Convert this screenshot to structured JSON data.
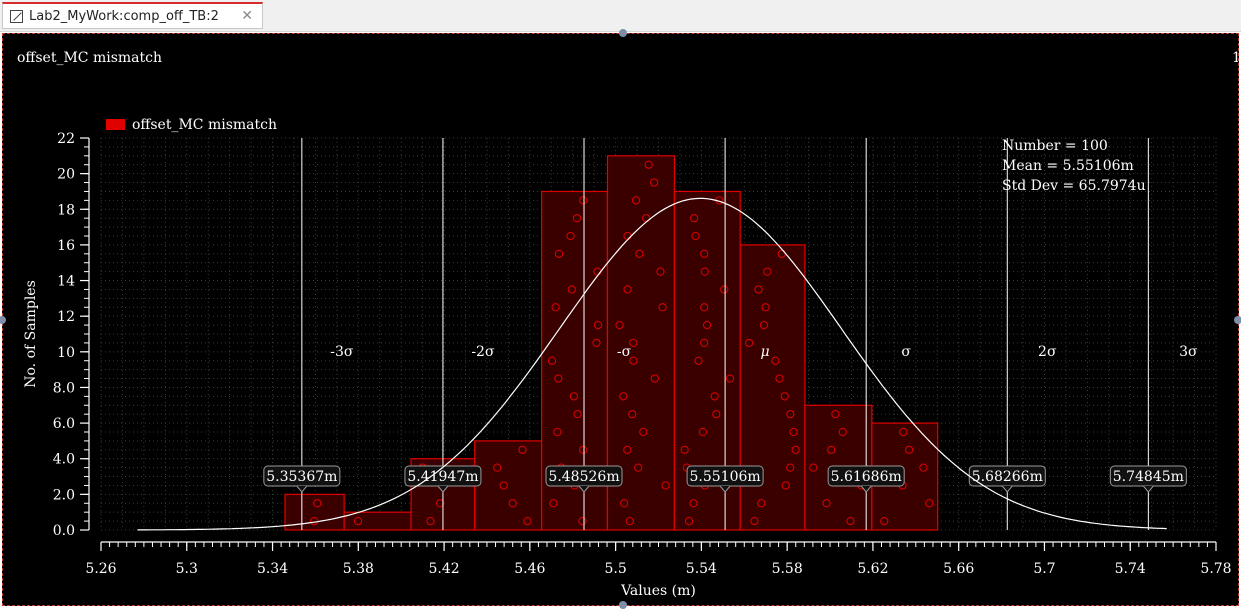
{
  "tab": {
    "label": "Lab2_MyWork:comp_off_TB:2",
    "close": "✕"
  },
  "chart_data": {
    "type": "bar",
    "title": "offset_MC mismatch",
    "title_right": "1",
    "legend": {
      "label": "offset_MC mismatch",
      "color": "#e00000",
      "placement": "top-left"
    },
    "xlabel": "Values (m)",
    "ylabel": "No. of Samples",
    "xlim": [
      5.26,
      5.78
    ],
    "ylim": [
      0,
      22
    ],
    "xticks": [
      "5.26",
      "5.3",
      "5.34",
      "5.38",
      "5.42",
      "5.46",
      "5.5",
      "5.54",
      "5.58",
      "5.62",
      "5.66",
      "5.7",
      "5.74",
      "5.78"
    ],
    "yticks": [
      "0.0",
      "2.0",
      "4.0",
      "6.0",
      "8.0",
      "10",
      "12",
      "14",
      "16",
      "18",
      "20",
      "22"
    ],
    "grid": true,
    "bins": [
      {
        "x0": 5.3458,
        "x1": 5.3734,
        "count": 2
      },
      {
        "x0": 5.3734,
        "x1": 5.4046,
        "count": 1
      },
      {
        "x0": 5.4046,
        "x1": 5.4343,
        "count": 4
      },
      {
        "x0": 5.4343,
        "x1": 5.4655,
        "count": 5
      },
      {
        "x0": 5.4655,
        "x1": 5.4962,
        "count": 19
      },
      {
        "x0": 5.4962,
        "x1": 5.5274,
        "count": 21
      },
      {
        "x0": 5.5274,
        "x1": 5.5581,
        "count": 19
      },
      {
        "x0": 5.5581,
        "x1": 5.5883,
        "count": 16
      },
      {
        "x0": 5.5883,
        "x1": 5.6195,
        "count": 7
      },
      {
        "x0": 5.6195,
        "x1": 5.6502,
        "count": 6
      }
    ],
    "sigma_lines": [
      {
        "label": "-3σ",
        "value": 5.35367,
        "value_label": "5.35367m"
      },
      {
        "label": "-2σ",
        "value": 5.41947,
        "value_label": "5.41947m"
      },
      {
        "label": "-σ",
        "value": 5.48526,
        "value_label": "5.48526m"
      },
      {
        "label": "μ",
        "value": 5.55106,
        "value_label": "5.55106m"
      },
      {
        "label": "σ",
        "value": 5.61686,
        "value_label": "5.61686m"
      },
      {
        "label": "2σ",
        "value": 5.68266,
        "value_label": "5.68266m"
      },
      {
        "label": "3σ",
        "value": 5.74845,
        "value_label": "5.74845m"
      }
    ],
    "stats": {
      "number": "Number = 100",
      "mean": "Mean = 5.55106m",
      "std": "Std Dev = 65.7974u"
    },
    "colors": {
      "background": "#000000",
      "bar": "#e00000",
      "bar_fill": "#3a0000",
      "curve": "#ffffff",
      "text": "#ffffff"
    }
  }
}
